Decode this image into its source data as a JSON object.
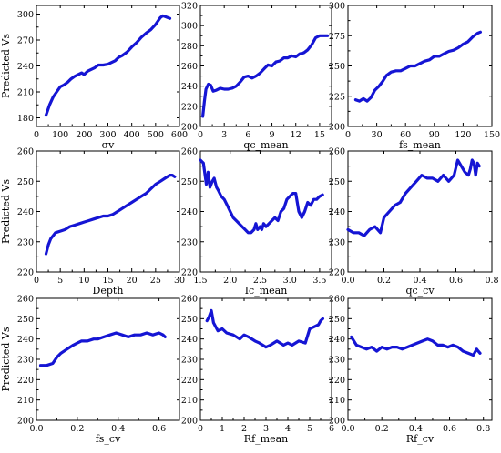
{
  "colors": {
    "line": "#1515d4",
    "axis": "#000000",
    "background": "#ffffff"
  },
  "chart_data": [
    {
      "type": "line",
      "xlabel": "σv",
      "ylabel": "Predicted Vs",
      "xlim": [
        0,
        600
      ],
      "ylim": [
        170,
        310
      ],
      "xticks": [
        0,
        100,
        200,
        300,
        400,
        500,
        600
      ],
      "yticks": [
        180,
        210,
        240,
        270,
        300
      ],
      "series": [
        {
          "x": [
            40,
            55,
            70,
            85,
            100,
            115,
            130,
            145,
            160,
            175,
            190,
            200,
            215,
            230,
            245,
            260,
            280,
            300,
            315,
            330,
            345,
            360,
            380,
            400,
            420,
            440,
            460,
            480,
            500,
            510,
            520,
            530,
            540,
            550,
            560
          ],
          "y": [
            183,
            195,
            204,
            210,
            216,
            218,
            221,
            225,
            228,
            230,
            232,
            230,
            234,
            236,
            238,
            241,
            241,
            242,
            244,
            246,
            250,
            252,
            256,
            262,
            267,
            273,
            278,
            282,
            288,
            292,
            296,
            298,
            297,
            296,
            295
          ]
        }
      ]
    },
    {
      "type": "line",
      "xlabel": "qc_mean",
      "ylabel": "",
      "xlim": [
        0,
        16.5
      ],
      "ylim": [
        200,
        320
      ],
      "xticks": [
        0,
        3,
        6,
        9,
        12,
        15
      ],
      "yticks": [
        200,
        220,
        240,
        260,
        280,
        300,
        320
      ],
      "series": [
        {
          "x": [
            0.3,
            0.5,
            0.7,
            1.0,
            1.3,
            1.6,
            2.0,
            2.5,
            3.0,
            3.5,
            4.0,
            4.5,
            5.0,
            5.5,
            6.0,
            6.5,
            7.0,
            7.5,
            8.0,
            8.5,
            9.0,
            9.5,
            10.0,
            10.5,
            11.0,
            11.5,
            12.0,
            12.5,
            13.0,
            13.5,
            14.0,
            14.5,
            15.0,
            15.5,
            16.0
          ],
          "y": [
            210,
            225,
            237,
            242,
            241,
            235,
            236,
            238,
            237,
            237,
            238,
            240,
            244,
            249,
            250,
            248,
            250,
            253,
            257,
            261,
            260,
            264,
            265,
            268,
            268,
            270,
            269,
            272,
            273,
            276,
            281,
            288,
            290,
            290,
            290
          ]
        }
      ]
    },
    {
      "type": "line",
      "xlabel": "fs_mean",
      "ylabel": "",
      "xlim": [
        0,
        150
      ],
      "ylim": [
        200,
        300
      ],
      "xticks": [
        0,
        30,
        60,
        90,
        120,
        150
      ],
      "yticks": [
        200,
        225,
        250,
        275,
        300
      ],
      "series": [
        {
          "x": [
            8,
            12,
            16,
            20,
            24,
            28,
            32,
            36,
            40,
            45,
            50,
            55,
            60,
            65,
            70,
            75,
            80,
            85,
            90,
            95,
            100,
            105,
            110,
            115,
            120,
            125,
            130,
            135,
            138
          ],
          "y": [
            222,
            221,
            223,
            221,
            224,
            230,
            233,
            237,
            242,
            245,
            246,
            246,
            248,
            250,
            250,
            252,
            254,
            255,
            258,
            258,
            260,
            262,
            263,
            265,
            268,
            270,
            274,
            277,
            278
          ]
        }
      ]
    },
    {
      "type": "line",
      "xlabel": "Depth",
      "ylabel": "Predicted Vs",
      "xlim": [
        0,
        30
      ],
      "ylim": [
        220,
        260
      ],
      "xticks": [
        0,
        5,
        10,
        15,
        20,
        25,
        30
      ],
      "yticks": [
        220,
        230,
        240,
        250,
        260
      ],
      "series": [
        {
          "x": [
            2,
            2.5,
            3,
            3.5,
            4,
            5,
            6,
            7,
            8,
            9,
            10,
            11,
            12,
            13,
            14,
            15,
            16,
            17,
            18,
            19,
            20,
            21,
            22,
            23,
            24,
            25,
            26,
            27,
            28,
            28.5,
            29
          ],
          "y": [
            226,
            229,
            231,
            232,
            233,
            233.5,
            234,
            235,
            235.5,
            236,
            236.5,
            237,
            237.5,
            238,
            238.5,
            238.5,
            239,
            240,
            241,
            242,
            243,
            244,
            245,
            246,
            247.5,
            249,
            250,
            251,
            252,
            252,
            251.5
          ]
        }
      ]
    },
    {
      "type": "line",
      "xlabel": "Ic_mean",
      "ylabel": "",
      "xlim": [
        1.5,
        3.7
      ],
      "ylim": [
        220,
        260
      ],
      "xticks": [
        1.5,
        2.0,
        2.5,
        3.0,
        3.5
      ],
      "yticks": [
        220,
        230,
        240,
        250,
        260
      ],
      "series": [
        {
          "x": [
            1.5,
            1.55,
            1.6,
            1.63,
            1.66,
            1.7,
            1.73,
            1.77,
            1.8,
            1.85,
            1.9,
            1.95,
            2.0,
            2.05,
            2.1,
            2.15,
            2.2,
            2.25,
            2.3,
            2.35,
            2.4,
            2.43,
            2.46,
            2.5,
            2.53,
            2.56,
            2.6,
            2.65,
            2.7,
            2.75,
            2.8,
            2.85,
            2.9,
            2.95,
            3.0,
            3.05,
            3.1,
            3.15,
            3.2,
            3.25,
            3.3,
            3.35,
            3.4,
            3.45,
            3.5,
            3.55
          ],
          "y": [
            257,
            256,
            249,
            253,
            248,
            250,
            251,
            248,
            247,
            245,
            244,
            242,
            240,
            238,
            237,
            236,
            235,
            234,
            233,
            233,
            234,
            236,
            234,
            235,
            234,
            236,
            235,
            236,
            237,
            238,
            237,
            240,
            241,
            244,
            245,
            246,
            246,
            240,
            238,
            240,
            243,
            242,
            244,
            244,
            245,
            245.5
          ]
        }
      ]
    },
    {
      "type": "line",
      "xlabel": "qc_cv",
      "ylabel": "",
      "xlim": [
        0,
        0.8
      ],
      "ylim": [
        220,
        260
      ],
      "xticks": [
        0.0,
        0.2,
        0.4,
        0.6,
        0.8
      ],
      "yticks": [
        220,
        230,
        240,
        250,
        260
      ],
      "series": [
        {
          "x": [
            0.0,
            0.03,
            0.06,
            0.09,
            0.12,
            0.15,
            0.18,
            0.2,
            0.23,
            0.26,
            0.29,
            0.32,
            0.35,
            0.38,
            0.41,
            0.44,
            0.47,
            0.5,
            0.53,
            0.56,
            0.59,
            0.61,
            0.63,
            0.65,
            0.67,
            0.68,
            0.69,
            0.7,
            0.71,
            0.72,
            0.73
          ],
          "y": [
            234,
            233,
            233,
            232,
            234,
            235,
            233,
            238,
            240,
            242,
            243,
            246,
            248,
            250,
            252,
            251,
            251,
            250,
            252,
            250,
            252,
            257,
            255,
            253,
            252,
            254,
            257,
            256,
            252,
            256,
            255
          ]
        }
      ]
    },
    {
      "type": "line",
      "xlabel": "fs_cv",
      "ylabel": "Predicted Vs",
      "xlim": [
        0,
        0.7
      ],
      "ylim": [
        200,
        260
      ],
      "xticks": [
        0.0,
        0.2,
        0.4,
        0.6
      ],
      "yticks": [
        200,
        210,
        220,
        230,
        240,
        250,
        260
      ],
      "series": [
        {
          "x": [
            0.02,
            0.05,
            0.08,
            0.1,
            0.12,
            0.15,
            0.18,
            0.2,
            0.22,
            0.25,
            0.28,
            0.3,
            0.33,
            0.36,
            0.39,
            0.42,
            0.45,
            0.48,
            0.51,
            0.54,
            0.57,
            0.6,
            0.62,
            0.63
          ],
          "y": [
            227,
            227,
            228,
            231,
            233,
            235,
            237,
            238,
            239,
            239,
            240,
            240,
            241,
            242,
            243,
            242,
            241,
            242,
            242,
            243,
            242,
            243,
            242,
            241
          ]
        }
      ]
    },
    {
      "type": "line",
      "xlabel": "Rf_mean",
      "ylabel": "",
      "xlim": [
        0,
        6
      ],
      "ylim": [
        200,
        260
      ],
      "xticks": [
        0,
        1,
        2,
        3,
        4,
        5,
        6
      ],
      "yticks": [
        200,
        210,
        220,
        230,
        240,
        250,
        260
      ],
      "series": [
        {
          "x": [
            0.3,
            0.4,
            0.5,
            0.6,
            0.7,
            0.8,
            1.0,
            1.2,
            1.5,
            1.8,
            2.0,
            2.2,
            2.5,
            2.7,
            3.0,
            3.2,
            3.5,
            3.8,
            4.0,
            4.2,
            4.5,
            4.8,
            5.0,
            5.2,
            5.4,
            5.5,
            5.6
          ],
          "y": [
            249,
            251,
            254,
            248,
            246,
            244,
            245,
            243,
            242,
            240,
            242,
            241,
            239,
            238,
            236,
            237,
            239,
            237,
            238,
            237,
            239,
            238,
            245,
            246,
            247,
            249,
            250
          ]
        }
      ]
    },
    {
      "type": "line",
      "xlabel": "Rf_cv",
      "ylabel": "",
      "xlim": [
        0,
        0.85
      ],
      "ylim": [
        200,
        260
      ],
      "xticks": [
        0.0,
        0.2,
        0.4,
        0.6,
        0.8
      ],
      "yticks": [
        200,
        210,
        220,
        230,
        240,
        250,
        260
      ],
      "series": [
        {
          "x": [
            0.02,
            0.05,
            0.08,
            0.11,
            0.14,
            0.17,
            0.2,
            0.23,
            0.26,
            0.29,
            0.32,
            0.35,
            0.38,
            0.41,
            0.44,
            0.47,
            0.5,
            0.53,
            0.56,
            0.59,
            0.62,
            0.65,
            0.68,
            0.71,
            0.74,
            0.76,
            0.77,
            0.78
          ],
          "y": [
            241,
            237,
            236,
            235,
            236,
            234,
            236,
            235,
            236,
            236,
            235,
            236,
            237,
            238,
            239,
            240,
            239,
            237,
            237,
            236,
            237,
            236,
            234,
            233,
            232,
            235,
            234,
            233
          ]
        }
      ]
    }
  ]
}
